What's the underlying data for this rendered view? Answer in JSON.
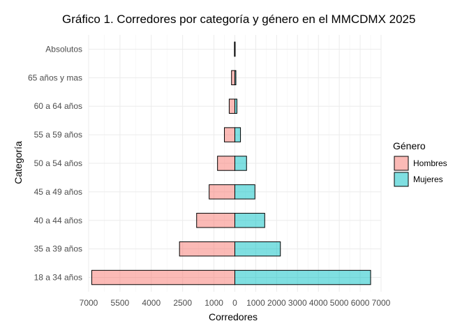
{
  "chart_data": {
    "type": "bar",
    "orientation": "horizontal",
    "title": "Gráfico 1. Corredores por categoría y género en el MMCDMX 2025",
    "xlabel": "Corredores",
    "ylabel": "Categoría",
    "categories": [
      "18 a 34 años",
      "35 a 39 años",
      "40 a 44 años",
      "45 a 49 años",
      "50 a 54 años",
      "55 a 59 años",
      "60 a 64 años",
      "65 años y mas",
      "Absolutos"
    ],
    "series": [
      {
        "name": "Hombres",
        "color": "#f8766d",
        "values": [
          6850,
          2650,
          1830,
          1230,
          830,
          500,
          270,
          160,
          20
        ]
      },
      {
        "name": "Mujeres",
        "color": "#00bfc4",
        "values": [
          6500,
          2180,
          1430,
          960,
          560,
          270,
          100,
          50,
          15
        ]
      }
    ],
    "xlim": [
      -7000,
      7000
    ],
    "x_ticks": [
      -7000,
      -5500,
      -4000,
      -2500,
      -1000,
      0,
      1000,
      2000,
      3000,
      4000,
      5000,
      6000,
      7000
    ],
    "x_tick_labels": [
      "7000",
      "5500",
      "4000",
      "2500",
      "1000",
      "0",
      "1000",
      "2000",
      "3000",
      "4000",
      "5000",
      "6000",
      "7000"
    ],
    "legend": {
      "title": "Género",
      "position": "right"
    },
    "grid": true
  }
}
